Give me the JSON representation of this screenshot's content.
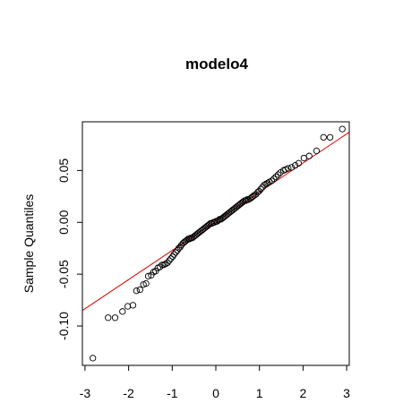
{
  "chart_data": {
    "type": "scatter",
    "title": "modelo4",
    "xlabel": "",
    "ylabel": "Sample Quantiles",
    "xlim": [
      -3.06,
      3.06
    ],
    "ylim": [
      -0.138,
      0.097
    ],
    "xticks": [
      -3,
      -2,
      -1,
      0,
      1,
      2,
      3
    ],
    "xtick_labels": [
      "-3",
      "-2",
      "-1",
      "0",
      "1",
      "2",
      "3"
    ],
    "yticks": [
      -0.1,
      -0.05,
      0.0,
      0.05
    ],
    "ytick_labels": [
      "-0.10",
      "-0.05",
      "0.00",
      "0.05"
    ],
    "grid": false,
    "reference_line": {
      "x": [
        -3.06,
        3.06
      ],
      "y": [
        -0.085,
        0.087
      ],
      "color": "#e00000"
    },
    "points": [
      [
        -2.82,
        -0.131
      ],
      [
        -2.47,
        -0.092
      ],
      [
        -2.31,
        -0.092
      ],
      [
        -2.14,
        -0.086
      ],
      [
        -2.02,
        -0.081
      ],
      [
        -1.9,
        -0.08
      ],
      [
        -1.82,
        -0.066
      ],
      [
        -1.74,
        -0.065
      ],
      [
        -1.66,
        -0.06
      ],
      [
        -1.6,
        -0.059
      ],
      [
        -1.55,
        -0.052
      ],
      [
        -1.48,
        -0.051
      ],
      [
        -1.43,
        -0.048
      ],
      [
        -1.38,
        -0.047
      ],
      [
        -1.33,
        -0.044
      ],
      [
        -1.28,
        -0.043
      ],
      [
        -1.23,
        -0.041
      ],
      [
        -1.19,
        -0.041
      ],
      [
        -1.15,
        -0.04
      ],
      [
        -1.11,
        -0.039
      ],
      [
        -1.07,
        -0.037
      ],
      [
        -1.03,
        -0.035
      ],
      [
        -0.99,
        -0.033
      ],
      [
        -0.96,
        -0.031
      ],
      [
        -0.92,
        -0.029
      ],
      [
        -0.88,
        -0.027
      ],
      [
        -0.85,
        -0.025
      ],
      [
        -0.82,
        -0.024
      ],
      [
        -0.79,
        -0.022
      ],
      [
        -0.75,
        -0.02
      ],
      [
        -0.72,
        -0.019
      ],
      [
        -0.69,
        -0.018
      ],
      [
        -0.66,
        -0.017
      ],
      [
        -0.63,
        -0.016
      ],
      [
        -0.6,
        -0.016
      ],
      [
        -0.57,
        -0.015
      ],
      [
        -0.54,
        -0.015
      ],
      [
        -0.51,
        -0.014
      ],
      [
        -0.48,
        -0.013
      ],
      [
        -0.45,
        -0.012
      ],
      [
        -0.42,
        -0.011
      ],
      [
        -0.39,
        -0.01
      ],
      [
        -0.36,
        -0.009
      ],
      [
        -0.33,
        -0.008
      ],
      [
        -0.3,
        -0.007
      ],
      [
        -0.27,
        -0.006
      ],
      [
        -0.24,
        -0.005
      ],
      [
        -0.21,
        -0.004
      ],
      [
        -0.18,
        -0.003
      ],
      [
        -0.15,
        -0.002
      ],
      [
        -0.12,
        -0.001
      ],
      [
        -0.09,
        -0.001
      ],
      [
        -0.06,
        0.0
      ],
      [
        -0.03,
        0.0
      ],
      [
        0.0,
        0.001
      ],
      [
        0.03,
        0.001
      ],
      [
        0.06,
        0.002
      ],
      [
        0.09,
        0.003
      ],
      [
        0.12,
        0.003
      ],
      [
        0.15,
        0.004
      ],
      [
        0.18,
        0.005
      ],
      [
        0.21,
        0.006
      ],
      [
        0.24,
        0.007
      ],
      [
        0.27,
        0.008
      ],
      [
        0.3,
        0.009
      ],
      [
        0.33,
        0.01
      ],
      [
        0.36,
        0.011
      ],
      [
        0.39,
        0.012
      ],
      [
        0.42,
        0.013
      ],
      [
        0.45,
        0.014
      ],
      [
        0.48,
        0.015
      ],
      [
        0.51,
        0.016
      ],
      [
        0.54,
        0.017
      ],
      [
        0.57,
        0.018
      ],
      [
        0.6,
        0.019
      ],
      [
        0.63,
        0.02
      ],
      [
        0.66,
        0.021
      ],
      [
        0.69,
        0.021
      ],
      [
        0.72,
        0.022
      ],
      [
        0.75,
        0.022
      ],
      [
        0.79,
        0.023
      ],
      [
        0.82,
        0.024
      ],
      [
        0.85,
        0.025
      ],
      [
        0.88,
        0.026
      ],
      [
        0.92,
        0.027
      ],
      [
        0.96,
        0.029
      ],
      [
        0.99,
        0.03
      ],
      [
        1.03,
        0.032
      ],
      [
        1.07,
        0.034
      ],
      [
        1.11,
        0.036
      ],
      [
        1.15,
        0.037
      ],
      [
        1.19,
        0.038
      ],
      [
        1.23,
        0.039
      ],
      [
        1.28,
        0.04
      ],
      [
        1.33,
        0.042
      ],
      [
        1.38,
        0.044
      ],
      [
        1.43,
        0.046
      ],
      [
        1.48,
        0.048
      ],
      [
        1.55,
        0.05
      ],
      [
        1.6,
        0.051
      ],
      [
        1.66,
        0.052
      ],
      [
        1.74,
        0.053
      ],
      [
        1.82,
        0.055
      ],
      [
        1.9,
        0.057
      ],
      [
        2.02,
        0.062
      ],
      [
        2.14,
        0.064
      ],
      [
        2.31,
        0.069
      ],
      [
        2.47,
        0.082
      ],
      [
        2.62,
        0.082
      ],
      [
        2.9,
        0.09
      ]
    ]
  }
}
